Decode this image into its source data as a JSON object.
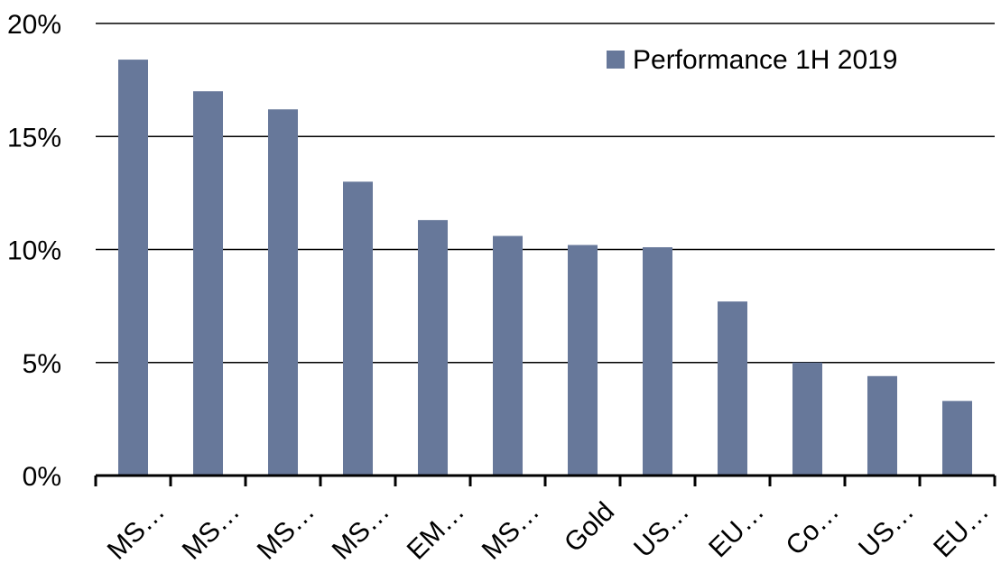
{
  "chart_data": {
    "type": "bar",
    "categories": [
      "MS…",
      "MS…",
      "MS…",
      "MS…",
      "EM…",
      "MS…",
      "Gold",
      "US…",
      "EU…",
      "Co…",
      "US…",
      "EU…"
    ],
    "series": [
      {
        "name": "Performance 1H 2019",
        "values": [
          18.4,
          17.0,
          16.2,
          13.0,
          11.3,
          10.6,
          10.2,
          10.1,
          7.7,
          5.0,
          4.4,
          3.3
        ],
        "color": "#67789a"
      }
    ],
    "ylim": [
      0,
      20
    ],
    "yticks": [
      0,
      5,
      10,
      15,
      20
    ],
    "ytick_labels": [
      "0%",
      "5%",
      "10%",
      "15%",
      "20%"
    ],
    "grid": true,
    "legend_position": "top-right",
    "title": "",
    "xlabel": "",
    "ylabel": ""
  }
}
